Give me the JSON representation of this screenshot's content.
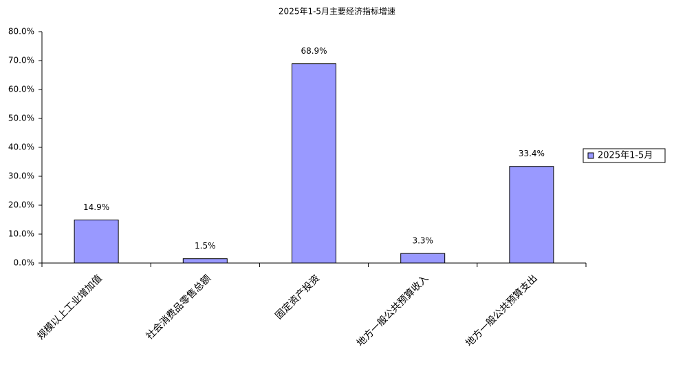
{
  "chart_data": {
    "type": "bar",
    "title": "2025年1-5月主要经济指标增速",
    "categories": [
      "规模以上工业增加值",
      "社会消费品零售总额",
      "固定资产投资",
      "地方一般公共预算收入",
      "地方一般公共预算支出"
    ],
    "series": [
      {
        "name": "2025年1-5月",
        "color": "#9999ff",
        "values": [
          14.9,
          1.5,
          68.9,
          3.3,
          33.4
        ],
        "value_labels": [
          "14.9%",
          "1.5%",
          "68.9%",
          "3.3%",
          "33.4%"
        ]
      }
    ],
    "ylim": [
      0,
      80
    ],
    "yticks": [
      {
        "value": 0,
        "label": "0.0%"
      },
      {
        "value": 10,
        "label": "10.0%"
      },
      {
        "value": 20,
        "label": "20.0%"
      },
      {
        "value": 30,
        "label": "30.0%"
      },
      {
        "value": 40,
        "label": "40.0%"
      },
      {
        "value": 50,
        "label": "50.0%"
      },
      {
        "value": 60,
        "label": "60.0%"
      },
      {
        "value": 70,
        "label": "70.0%"
      },
      {
        "value": 80,
        "label": "80.0%"
      }
    ],
    "legend": "right"
  }
}
